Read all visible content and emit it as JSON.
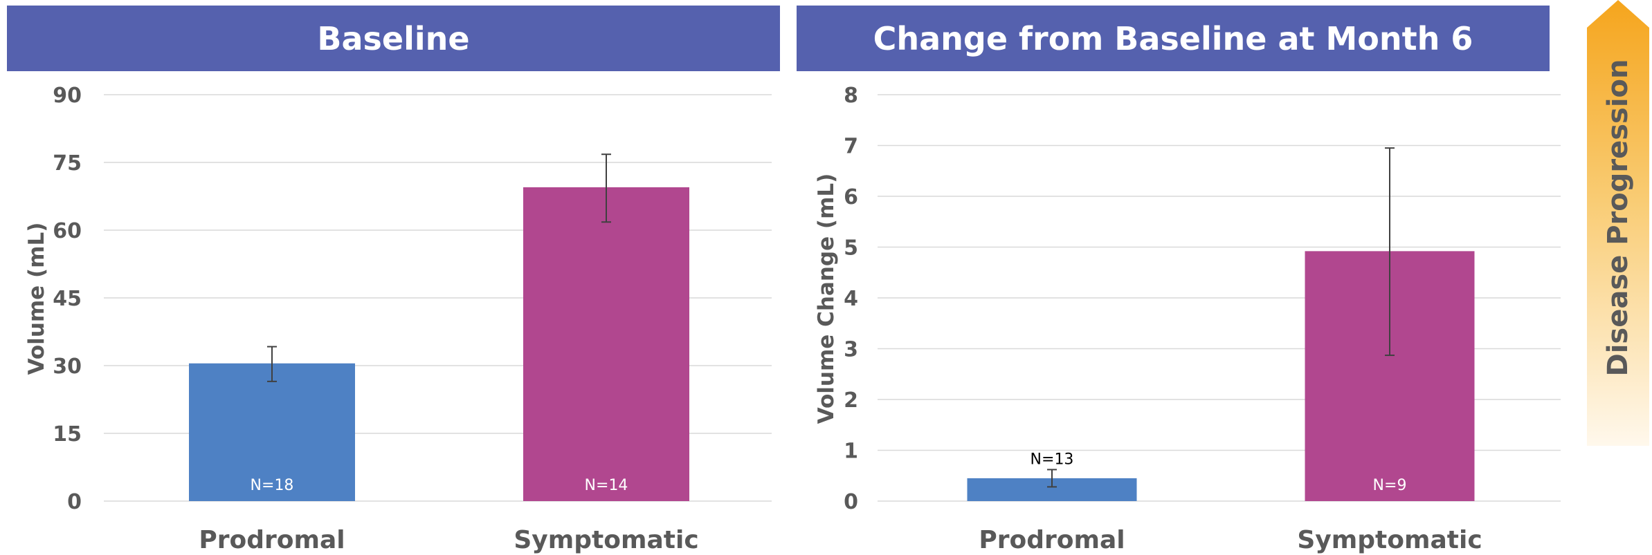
{
  "chart_data": [
    {
      "type": "bar",
      "title": "Baseline",
      "ylabel": "Volume (mL)",
      "xlabel": "",
      "ylim": [
        0,
        90
      ],
      "yticks": [
        0,
        15,
        30,
        45,
        60,
        75,
        90
      ],
      "categories": [
        "Prodromal",
        "Symptomatic"
      ],
      "values": [
        30.5,
        69.5
      ],
      "error_low": [
        26.5,
        61.8
      ],
      "error_high": [
        34.2,
        76.8
      ],
      "n_labels": [
        "N=18",
        "N=14"
      ],
      "colors": [
        "#4E81C4",
        "#B1478F"
      ],
      "grid": true
    },
    {
      "type": "bar",
      "title": "Change from Baseline at Month 6",
      "ylabel": "Volume Change (mL)",
      "xlabel": "",
      "ylim": [
        0,
        8
      ],
      "yticks": [
        0,
        1,
        2,
        3,
        4,
        5,
        6,
        7,
        8
      ],
      "categories": [
        "Prodromal",
        "Symptomatic"
      ],
      "values": [
        0.45,
        4.92
      ],
      "error_low": [
        0.28,
        2.87
      ],
      "error_high": [
        0.62,
        6.95
      ],
      "n_labels": [
        "N=13",
        "N=9"
      ],
      "colors": [
        "#4E81C4",
        "#B1478F"
      ],
      "grid": true
    }
  ],
  "progress_indicator": {
    "label": "Disease Progression",
    "color_top": "#F5A51D",
    "color_bottom": "#FFF8EC"
  }
}
